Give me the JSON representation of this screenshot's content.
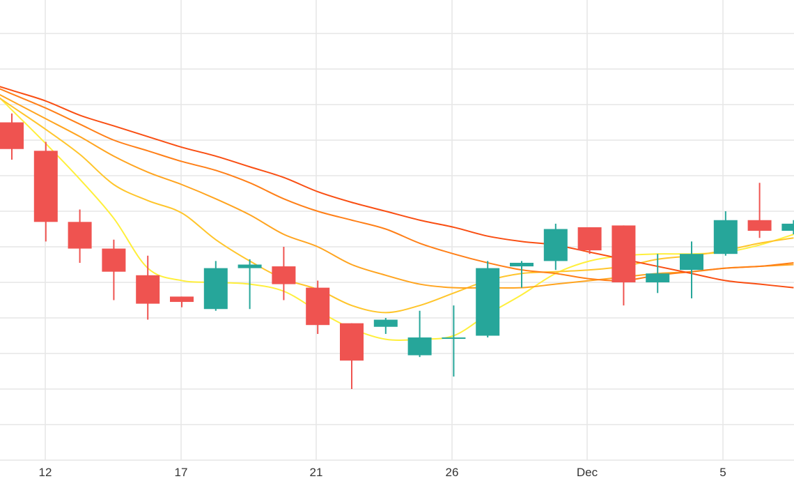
{
  "chart_data": {
    "type": "candlestick",
    "x_tick_labels": [
      "12",
      "17",
      "21",
      "26",
      "Dec",
      "5"
    ],
    "y_range": [
      0,
      13
    ],
    "y_gridlines": [
      1,
      2,
      3,
      4,
      5,
      6,
      7,
      8,
      9,
      10,
      11,
      12
    ],
    "grid": true,
    "candles": [
      {
        "x": 0,
        "open": 9.5,
        "high": 9.75,
        "low": 8.45,
        "close": 8.75
      },
      {
        "x": 1,
        "open": 8.7,
        "high": 8.95,
        "low": 6.15,
        "close": 6.7
      },
      {
        "x": 2,
        "open": 6.7,
        "high": 7.05,
        "low": 5.55,
        "close": 5.95
      },
      {
        "x": 3,
        "open": 5.95,
        "high": 6.2,
        "low": 4.5,
        "close": 5.3
      },
      {
        "x": 4,
        "open": 5.2,
        "high": 5.75,
        "low": 3.95,
        "close": 4.4
      },
      {
        "x": 5,
        "open": 4.6,
        "high": 4.6,
        "low": 4.3,
        "close": 4.45
      },
      {
        "x": 6,
        "open": 4.25,
        "high": 5.6,
        "low": 4.2,
        "close": 5.4
      },
      {
        "x": 7,
        "open": 5.4,
        "high": 5.65,
        "low": 4.25,
        "close": 5.5
      },
      {
        "x": 8,
        "open": 5.45,
        "high": 6.0,
        "low": 4.5,
        "close": 4.95
      },
      {
        "x": 9,
        "open": 4.85,
        "high": 5.05,
        "low": 3.55,
        "close": 3.8
      },
      {
        "x": 10,
        "open": 3.85,
        "high": 3.85,
        "low": 2.0,
        "close": 2.8
      },
      {
        "x": 11,
        "open": 3.75,
        "high": 4.0,
        "low": 3.55,
        "close": 3.95
      },
      {
        "x": 12,
        "open": 2.95,
        "high": 4.2,
        "low": 2.9,
        "close": 3.45
      },
      {
        "x": 13,
        "open": 3.45,
        "high": 4.35,
        "low": 2.35,
        "close": 3.45
      },
      {
        "x": 14,
        "open": 3.5,
        "high": 5.6,
        "low": 3.45,
        "close": 5.4
      },
      {
        "x": 15,
        "open": 5.45,
        "high": 5.6,
        "low": 4.85,
        "close": 5.55
      },
      {
        "x": 16,
        "open": 5.6,
        "high": 6.65,
        "low": 5.35,
        "close": 6.5
      },
      {
        "x": 17,
        "open": 6.55,
        "high": 6.55,
        "low": 5.8,
        "close": 5.9
      },
      {
        "x": 18,
        "open": 6.6,
        "high": 6.6,
        "low": 4.35,
        "close": 5.0
      },
      {
        "x": 19,
        "open": 5.0,
        "high": 5.8,
        "low": 4.7,
        "close": 5.25
      },
      {
        "x": 20,
        "open": 5.35,
        "high": 6.15,
        "low": 4.55,
        "close": 5.8
      },
      {
        "x": 21,
        "open": 5.8,
        "high": 7.0,
        "low": 5.75,
        "close": 6.75
      },
      {
        "x": 22,
        "open": 6.75,
        "high": 7.8,
        "low": 6.25,
        "close": 6.45
      },
      {
        "x": 23,
        "open": 6.45,
        "high": 6.75,
        "low": 6.35,
        "close": 6.65
      }
    ],
    "up_color": "#26a69a",
    "down_color": "#ef5350",
    "series": [
      {
        "color": "#ffef3b",
        "values": [
          9.85,
          8.9,
          7.9,
          6.8,
          5.4,
          5.05,
          5.0,
          4.95,
          4.75,
          4.2,
          3.7,
          3.4,
          3.4,
          3.5,
          4.1,
          4.65,
          5.25,
          5.6,
          5.75,
          5.8,
          5.8,
          5.85,
          6.05,
          6.35
        ]
      },
      {
        "color": "#ffc52b",
        "values": [
          9.95,
          9.3,
          8.6,
          7.75,
          7.3,
          6.95,
          6.2,
          5.6,
          5.1,
          4.8,
          4.35,
          4.15,
          4.35,
          4.7,
          5.05,
          5.25,
          5.3,
          5.35,
          5.45,
          5.65,
          5.75,
          5.9,
          6.1,
          6.25
        ]
      },
      {
        "color": "#ffa41f",
        "values": [
          10.1,
          9.6,
          9.1,
          8.55,
          8.1,
          7.75,
          7.35,
          6.9,
          6.35,
          6.0,
          5.5,
          5.2,
          4.95,
          4.85,
          4.85,
          4.85,
          4.95,
          5.05,
          5.15,
          5.25,
          5.3,
          5.4,
          5.45,
          5.5
        ]
      },
      {
        "color": "#ff7f17",
        "values": [
          10.3,
          9.9,
          9.45,
          9.0,
          8.7,
          8.4,
          8.15,
          7.8,
          7.35,
          7.0,
          6.75,
          6.5,
          6.1,
          5.8,
          5.55,
          5.35,
          5.25,
          5.1,
          5.05,
          5.2,
          5.3,
          5.4,
          5.45,
          5.55
        ]
      },
      {
        "color": "#f94e12",
        "values": [
          10.4,
          10.1,
          9.7,
          9.4,
          9.1,
          8.8,
          8.55,
          8.25,
          7.95,
          7.55,
          7.25,
          7.0,
          6.75,
          6.55,
          6.3,
          6.15,
          6.05,
          5.85,
          5.65,
          5.45,
          5.25,
          5.05,
          4.95,
          4.85
        ]
      }
    ]
  }
}
